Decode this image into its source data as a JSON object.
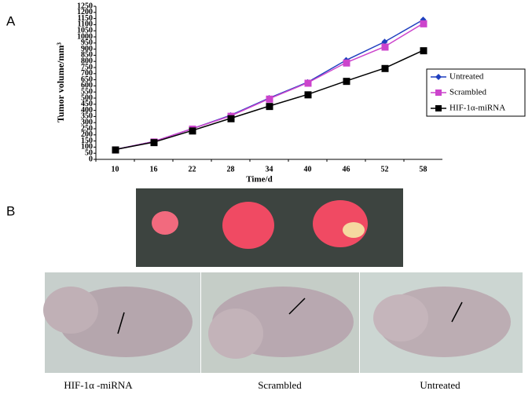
{
  "panel_labels": [
    "A",
    "B"
  ],
  "chart_data": {
    "type": "line",
    "y_label": "Tumor volume/mm³",
    "x_label": "Time/d",
    "categories": [
      "10",
      "16",
      "22",
      "28",
      "34",
      "40",
      "46",
      "52",
      "58"
    ],
    "ylim": [
      0,
      1250
    ],
    "yticks": [
      0,
      50,
      100,
      150,
      200,
      250,
      300,
      350,
      400,
      450,
      500,
      550,
      600,
      650,
      700,
      750,
      800,
      850,
      900,
      950,
      1000,
      1050,
      1100,
      1150,
      1200,
      1250
    ],
    "grid": false,
    "legend": "right",
    "series": [
      {
        "name": "Untreated",
        "color": "#1f3fbf",
        "marker": "diamond",
        "values": [
          80,
          145,
          250,
          360,
          500,
          630,
          810,
          960,
          1140
        ]
      },
      {
        "name": "Scrambled",
        "color": "#cc44cc",
        "marker": "square",
        "values": [
          80,
          145,
          250,
          355,
          495,
          625,
          790,
          920,
          1110
        ]
      },
      {
        "name": "HIF-1α-miRNA",
        "color": "#000000",
        "marker": "square",
        "values": [
          80,
          140,
          235,
          335,
          435,
          530,
          640,
          745,
          890
        ]
      }
    ]
  },
  "photo_labels": [
    "HIF-1α -miRNA",
    "Scrambled",
    "Untreated"
  ]
}
